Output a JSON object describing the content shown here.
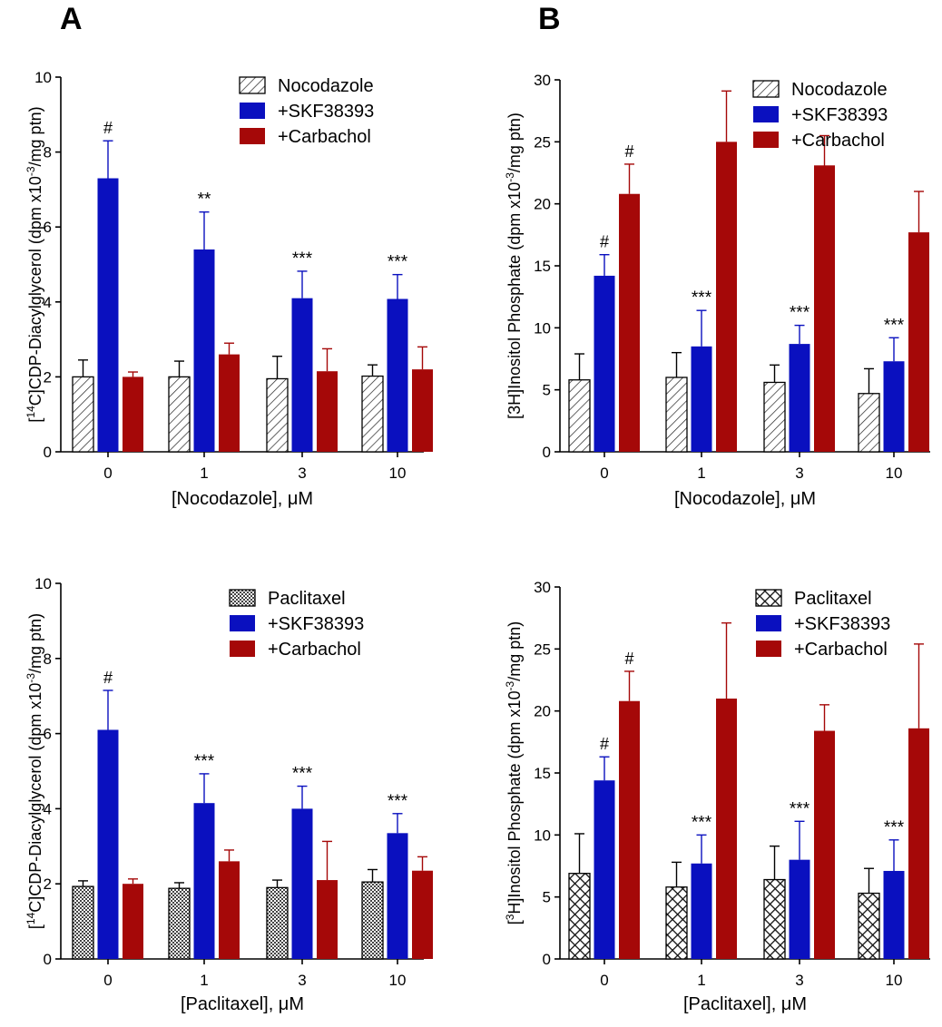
{
  "panel_labels": [
    "A",
    "B"
  ],
  "colors": {
    "skf": "#0a10bf",
    "carbachol": "#a50808",
    "axis": "#000000",
    "hatch_bg": "#ffffff"
  },
  "chart_data": [
    {
      "type": "bar",
      "panel": "A",
      "ylabel_parts": [
        "[",
        "14",
        "C]CDP-Diacylglycerol (dpm x10",
        "-3",
        "/mg ptn)"
      ],
      "xlabel": "[Nocodazole], μM",
      "categories": [
        "0",
        "1",
        "3",
        "10"
      ],
      "ylim": [
        0,
        10
      ],
      "yticks": [
        "0",
        "2",
        "4",
        "6",
        "8",
        "10"
      ],
      "legend_position": "top-right",
      "control_pattern": "hatch",
      "series": [
        {
          "name": "Nocodazole",
          "values": [
            2.0,
            2.0,
            1.95,
            2.02
          ],
          "errors": [
            0.45,
            0.42,
            0.6,
            0.3
          ],
          "color_key": "control"
        },
        {
          "name": "+SKF38393",
          "values": [
            7.3,
            5.4,
            4.1,
            4.08
          ],
          "errors": [
            1.0,
            1.0,
            0.72,
            0.65
          ],
          "color_key": "skf"
        },
        {
          "name": "+Carbachol",
          "values": [
            2.0,
            2.6,
            2.15,
            2.2
          ],
          "errors": [
            0.13,
            0.3,
            0.6,
            0.6
          ],
          "color_key": "carbachol"
        }
      ],
      "annotations": [
        {
          "series": 1,
          "category": 0,
          "text": "#"
        },
        {
          "series": 1,
          "category": 1,
          "text": "**"
        },
        {
          "series": 1,
          "category": 2,
          "text": "***"
        },
        {
          "series": 1,
          "category": 3,
          "text": "***"
        }
      ]
    },
    {
      "type": "bar",
      "panel": "B",
      "ylabel_parts": [
        "[3H]Inositol Phosphate (dpm x10",
        "-3",
        "/mg ptn)"
      ],
      "xlabel": "[Nocodazole], μM",
      "categories": [
        "0",
        "1",
        "3",
        "10"
      ],
      "ylim": [
        0,
        30
      ],
      "yticks": [
        "0",
        "5",
        "10",
        "15",
        "20",
        "25",
        "30"
      ],
      "legend_position": "top-right",
      "control_pattern": "hatch",
      "series": [
        {
          "name": "Nocodazole",
          "values": [
            5.8,
            6.0,
            5.6,
            4.7
          ],
          "errors": [
            2.1,
            2.0,
            1.4,
            2.0
          ],
          "color_key": "control"
        },
        {
          "name": "+SKF38393",
          "values": [
            14.2,
            8.5,
            8.7,
            7.3
          ],
          "errors": [
            1.7,
            2.9,
            1.5,
            1.9
          ],
          "color_key": "skf"
        },
        {
          "name": "+Carbachol",
          "values": [
            20.8,
            25.0,
            23.1,
            17.7
          ],
          "errors": [
            2.4,
            4.1,
            2.4,
            3.3
          ],
          "color_key": "carbachol",
          "error_both": [
            false,
            false,
            true,
            false
          ]
        }
      ],
      "annotations": [
        {
          "series": 1,
          "category": 0,
          "text": "#"
        },
        {
          "series": 2,
          "category": 0,
          "text": "#"
        },
        {
          "series": 1,
          "category": 1,
          "text": "***"
        },
        {
          "series": 1,
          "category": 2,
          "text": "***"
        },
        {
          "series": 1,
          "category": 3,
          "text": "***"
        }
      ]
    },
    {
      "type": "bar",
      "panel": "A",
      "ylabel_parts": [
        "[",
        "14",
        "C]CDP-Diacylglycerol (dpm x10",
        "-3",
        "/mg ptn)"
      ],
      "xlabel": "[Paclitaxel], μM",
      "categories": [
        "0",
        "1",
        "3",
        "10"
      ],
      "ylim": [
        0,
        10
      ],
      "yticks": [
        "0",
        "2",
        "4",
        "6",
        "8",
        "10"
      ],
      "legend_position": "top-right",
      "control_pattern": "fine-check",
      "series": [
        {
          "name": "Paclitaxel",
          "values": [
            1.93,
            1.88,
            1.9,
            2.05
          ],
          "errors": [
            0.15,
            0.15,
            0.2,
            0.33
          ],
          "color_key": "control"
        },
        {
          "name": "+SKF38393",
          "values": [
            6.1,
            4.15,
            4.0,
            3.35
          ],
          "errors": [
            1.05,
            0.78,
            0.6,
            0.52
          ],
          "color_key": "skf"
        },
        {
          "name": "+Carbachol",
          "values": [
            2.0,
            2.6,
            2.1,
            2.35
          ],
          "errors": [
            0.13,
            0.3,
            1.03,
            0.37
          ],
          "color_key": "carbachol"
        }
      ],
      "annotations": [
        {
          "series": 1,
          "category": 0,
          "text": "#"
        },
        {
          "series": 1,
          "category": 1,
          "text": "***"
        },
        {
          "series": 1,
          "category": 2,
          "text": "***"
        },
        {
          "series": 1,
          "category": 3,
          "text": "***"
        }
      ]
    },
    {
      "type": "bar",
      "panel": "B",
      "ylabel_parts": [
        "[",
        "3",
        "H]Inositol Phosphate (dpm x10",
        "-3",
        "/mg ptn)"
      ],
      "xlabel": "[Paclitaxel], μM",
      "categories": [
        "0",
        "1",
        "3",
        "10"
      ],
      "ylim": [
        0,
        30
      ],
      "yticks": [
        "0",
        "5",
        "10",
        "15",
        "20",
        "25",
        "30"
      ],
      "legend_position": "top-right",
      "control_pattern": "crosshatch",
      "series": [
        {
          "name": "Paclitaxel",
          "values": [
            6.9,
            5.8,
            6.4,
            5.3
          ],
          "errors": [
            3.2,
            2.0,
            2.7,
            2.0
          ],
          "color_key": "control"
        },
        {
          "name": "+SKF38393",
          "values": [
            14.4,
            7.7,
            8.0,
            7.1
          ],
          "errors": [
            1.9,
            2.3,
            3.1,
            2.5
          ],
          "color_key": "skf"
        },
        {
          "name": "+Carbachol",
          "values": [
            20.8,
            21.0,
            18.4,
            18.6
          ],
          "errors": [
            2.4,
            6.1,
            2.1,
            6.8
          ],
          "color_key": "carbachol"
        }
      ],
      "annotations": [
        {
          "series": 1,
          "category": 0,
          "text": "#"
        },
        {
          "series": 2,
          "category": 0,
          "text": "#"
        },
        {
          "series": 1,
          "category": 1,
          "text": "***"
        },
        {
          "series": 1,
          "category": 2,
          "text": "***"
        },
        {
          "series": 1,
          "category": 3,
          "text": "***"
        }
      ]
    }
  ]
}
